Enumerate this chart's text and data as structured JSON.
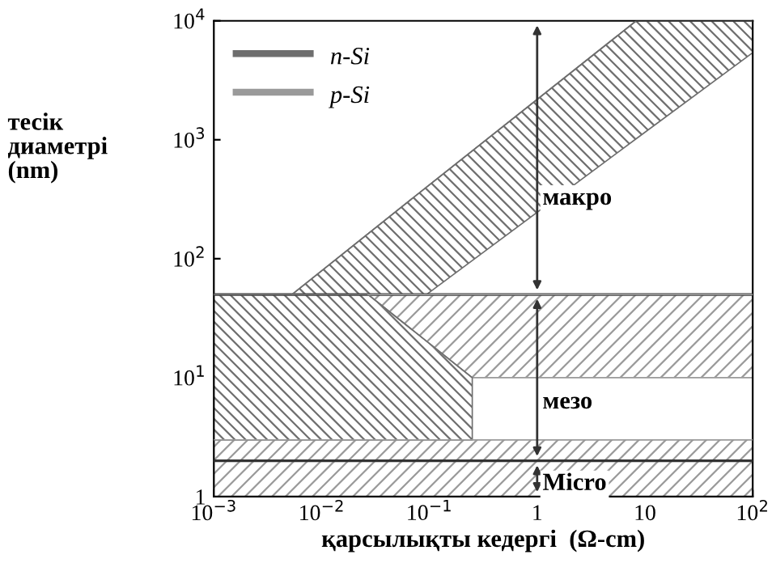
{
  "chart_data": {
    "type": "line",
    "marker": "none",
    "xlabel": "қарсылықты кедергі  (Ω-cm)",
    "ylabel": "тесік\nдиаметрі\n(nm)",
    "log": "xy",
    "xlim": [
      0.001,
      100
    ],
    "ylim": [
      1,
      10000
    ],
    "xticks": [
      {
        "value": 0.001,
        "label": "10$^{−3}$"
      },
      {
        "value": 0.01,
        "label": "10$^{−2}$"
      },
      {
        "value": 0.1,
        "label": "10$^{−1}$"
      },
      1,
      10,
      {
        "value": 100,
        "label": "10$^{2}$"
      }
    ],
    "yticks": [
      1,
      {
        "value": 10,
        "label": "10$^{1}$"
      },
      {
        "value": 100,
        "label": "10$^{2}$"
      },
      {
        "value": 1000,
        "label": "10$^{3}$"
      },
      {
        "value": 10000,
        "label": "10$^{4}$"
      }
    ],
    "series": [
      {
        "name": "n-Si",
        "color": "#6e6e6e",
        "x": [
          0.0053,
          0.094,
          8.3,
          100
        ],
        "values": [
          50,
          400,
          10000,
          10000
        ],
        "upper": [
          50,
          400,
          10000,
          10000
        ],
        "lower": [
          50,
          50,
          1020,
          5400
        ]
      },
      {
        "name": "p-Si",
        "color": "#9a9a9a",
        "x": [
          0.001,
          100
        ],
        "values": [
          3,
          3
        ],
        "upper": [
          3,
          3
        ],
        "lower": [
          1,
          1
        ]
      },
      {
        "color": "#6e6e6e",
        "x": [
          0.001,
          0.027,
          0.25
        ],
        "values": [
          50,
          50,
          10
        ],
        "upper": [
          50,
          50,
          10
        ],
        "lower": [
          3,
          3,
          3
        ]
      },
      {
        "color": "#9a9a9a",
        "x": [
          0.027,
          0.25,
          100
        ],
        "values": [
          50,
          50,
          50
        ],
        "upper": [
          50,
          50,
          50
        ],
        "lower": [
          50,
          10,
          10
        ]
      }
    ],
    "ref_lines": [
      {
        "axis": "y",
        "value": 50,
        "color": "#333333"
      },
      {
        "axis": "y",
        "value": 2,
        "color": "#333333"
      }
    ],
    "annotations": [
      "макро",
      "мезо",
      "Micro"
    ],
    "legend": "top left",
    "grid": false
  }
}
